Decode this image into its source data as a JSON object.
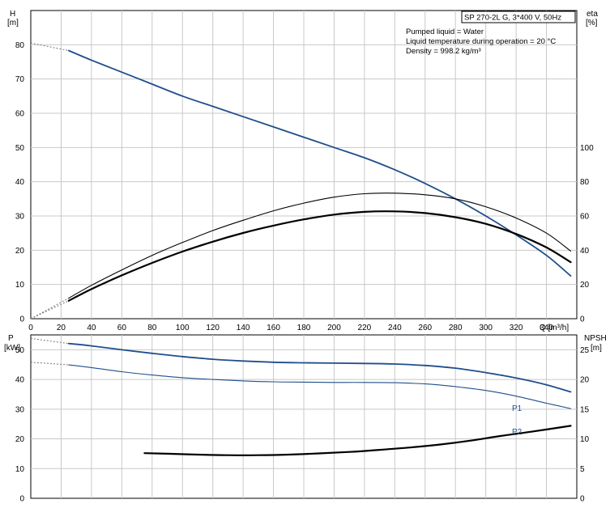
{
  "chart_data": [
    {
      "type": "line",
      "title": "SP 270-2L G, 3*400 V, 50Hz",
      "annotations": [
        "Pumped liquid = Water",
        "Liquid temperature during operation = 20 °C",
        "Density = 998.2 kg/m³"
      ],
      "xlabel": "Q [m³/h]",
      "ylabel_left": [
        "H",
        "[m]"
      ],
      "ylabel_right": [
        "eta",
        "[%]"
      ],
      "xlim": [
        0,
        360
      ],
      "ylim_left": [
        0,
        90
      ],
      "ylim_right": [
        0,
        180
      ],
      "x_ticks": [
        0,
        20,
        40,
        60,
        80,
        100,
        120,
        140,
        160,
        180,
        200,
        220,
        240,
        260,
        280,
        300,
        320,
        340
      ],
      "y_ticks_left": [
        0,
        10,
        20,
        30,
        40,
        50,
        60,
        70,
        80
      ],
      "y_ticks_right": [
        0,
        20,
        40,
        60,
        80,
        100
      ],
      "grid": true,
      "series": [
        {
          "axis": "left",
          "color": "#1f4e8c",
          "extrapolated": [
            [
              0,
              80.5
            ],
            [
              25,
              78.3
            ]
          ],
          "x": [
            25,
            40,
            60,
            80,
            100,
            120,
            140,
            160,
            180,
            200,
            220,
            240,
            260,
            280,
            300,
            320,
            340,
            356
          ],
          "y": [
            78.3,
            75.5,
            72,
            68.5,
            65,
            62,
            59,
            56,
            53,
            50,
            47,
            43.5,
            39.5,
            35,
            30,
            24.5,
            18.5,
            12.5
          ]
        },
        {
          "axis": "right",
          "color": "#000000",
          "extrapolated": [
            [
              0,
              0
            ],
            [
              25,
              10.5
            ]
          ],
          "x": [
            25,
            40,
            60,
            80,
            100,
            120,
            140,
            160,
            180,
            200,
            220,
            240,
            260,
            280,
            300,
            320,
            340,
            356
          ],
          "y": [
            10.5,
            17.3,
            25.3,
            32.6,
            39.2,
            45,
            50.1,
            54.4,
            58,
            60.8,
            62.4,
            62.7,
            61.7,
            59.3,
            55.4,
            49.5,
            41.6,
            33
          ]
        },
        {
          "axis": "right",
          "color": "#000000",
          "extrapolated": [
            [
              0,
              0
            ],
            [
              25,
              12
            ]
          ],
          "x": [
            25,
            40,
            60,
            80,
            100,
            120,
            140,
            160,
            180,
            200,
            220,
            240,
            260,
            280,
            300,
            320,
            340,
            356
          ],
          "y": [
            12,
            19.5,
            28.5,
            37,
            44.5,
            51.5,
            57.5,
            63,
            67.5,
            71,
            73,
            73.3,
            72.4,
            70,
            65.4,
            58.8,
            50,
            39.5
          ]
        }
      ]
    },
    {
      "type": "line",
      "xlabel": "",
      "ylabel_left": [
        "P",
        "[kW]"
      ],
      "ylabel_right": [
        "NPSH",
        "[m]"
      ],
      "xlim": [
        0,
        360
      ],
      "ylim_left": [
        0,
        55
      ],
      "ylim_right": [
        0,
        27.5
      ],
      "y_ticks_left": [
        0,
        10,
        20,
        30,
        40,
        50
      ],
      "y_ticks_right": [
        0,
        5,
        10,
        15,
        20,
        25
      ],
      "grid": true,
      "series": [
        {
          "name": "P1",
          "axis": "left",
          "color": "#1f4e8c",
          "extrapolated": [
            [
              0,
              53.8
            ],
            [
              25,
              52.1
            ]
          ],
          "x": [
            25,
            40,
            60,
            80,
            100,
            120,
            140,
            160,
            180,
            200,
            220,
            240,
            260,
            280,
            300,
            320,
            340,
            356
          ],
          "y": [
            52.1,
            51.3,
            50,
            48.8,
            47.7,
            46.8,
            46.2,
            45.8,
            45.6,
            45.5,
            45.4,
            45.2,
            44.7,
            43.8,
            42.3,
            40.5,
            38.2,
            35.8
          ]
        },
        {
          "name": "P2",
          "axis": "left",
          "color": "#1f4e8c",
          "extrapolated": [
            [
              0,
              45.8
            ],
            [
              25,
              44.9
            ]
          ],
          "x": [
            25,
            40,
            60,
            80,
            100,
            120,
            140,
            160,
            180,
            200,
            220,
            240,
            260,
            280,
            300,
            320,
            340,
            356
          ],
          "y": [
            44.9,
            44,
            42.6,
            41.5,
            40.6,
            40,
            39.5,
            39.2,
            39.1,
            39,
            39,
            38.9,
            38.5,
            37.6,
            36.3,
            34.4,
            32,
            30.2
          ]
        },
        {
          "axis": "right",
          "color": "#000000",
          "x": [
            75,
            90,
            110,
            130,
            150,
            170,
            190,
            210,
            230,
            250,
            270,
            290,
            310,
            330,
            356
          ],
          "y": [
            7.6,
            7.5,
            7.35,
            7.25,
            7.25,
            7.35,
            7.55,
            7.8,
            8.15,
            8.55,
            9.05,
            9.7,
            10.5,
            11.2,
            12.2
          ]
        }
      ]
    }
  ]
}
